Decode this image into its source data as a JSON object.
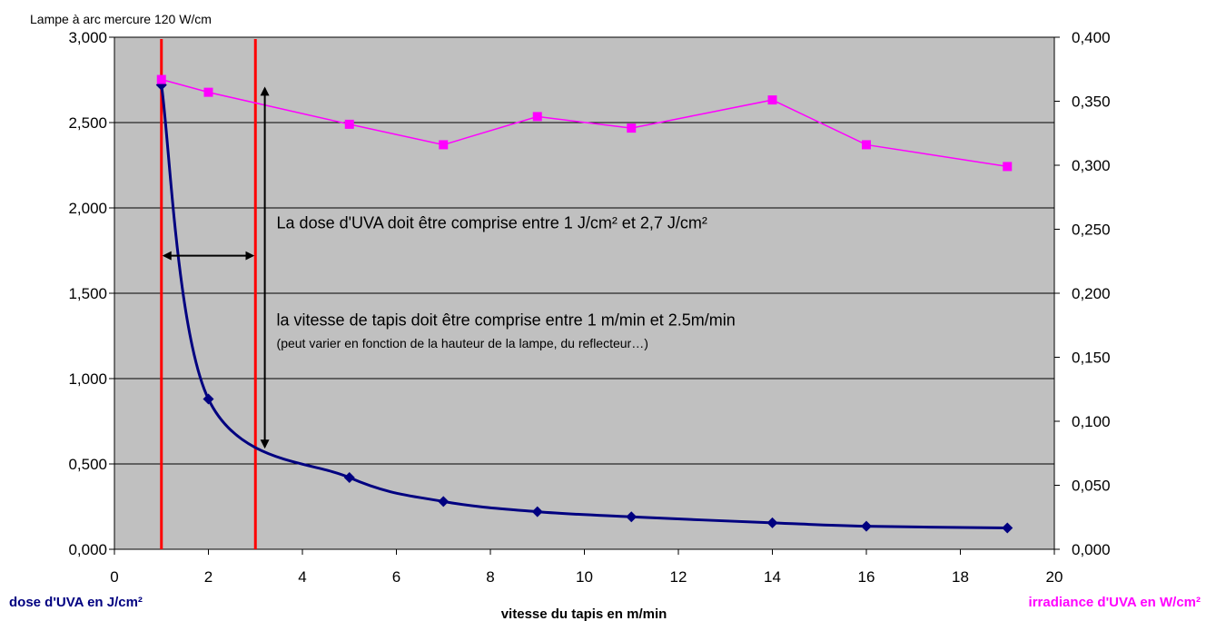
{
  "chart_data": {
    "type": "line",
    "title": "Lampe à arc mercure 120 W/cm",
    "xlabel": "vitesse du tapis en m/min",
    "ylabel_left": "dose d'UVA en J/cm²",
    "ylabel_right": "irradiance d'UVA en W/cm²",
    "xlim": [
      0,
      20
    ],
    "ylim_left": [
      0,
      3
    ],
    "ylim_right": [
      0,
      0.4
    ],
    "x_ticks": [
      "0",
      "2",
      "4",
      "6",
      "8",
      "10",
      "12",
      "14",
      "16",
      "18",
      "20"
    ],
    "y_ticks_left": [
      "0,000",
      "0,500",
      "1,000",
      "1,500",
      "2,000",
      "2,500",
      "3,000"
    ],
    "y_ticks_right": [
      "0,000",
      "0,050",
      "0,100",
      "0,150",
      "0,200",
      "0,250",
      "0,300",
      "0,350",
      "0,400"
    ],
    "grid": "horizontal",
    "plot_background": "#c0c0c0",
    "series": [
      {
        "axis": "left",
        "color": "#000080",
        "marker": "diamond",
        "smooth": true,
        "x": [
          1,
          2,
          5,
          7,
          9,
          11,
          14,
          16,
          19
        ],
        "y": [
          2.72,
          0.88,
          0.42,
          0.28,
          0.22,
          0.19,
          0.155,
          0.135,
          0.125
        ]
      },
      {
        "axis": "right",
        "color": "#ff00ff",
        "marker": "square",
        "smooth": false,
        "x": [
          1,
          2,
          5,
          7,
          9,
          11,
          14,
          16,
          19
        ],
        "y": [
          0.367,
          0.357,
          0.332,
          0.316,
          0.338,
          0.329,
          0.351,
          0.316,
          0.299
        ]
      }
    ],
    "reference_lines": [
      {
        "axis": "x",
        "value": 1,
        "color": "#ff0000"
      },
      {
        "axis": "x",
        "value": 3,
        "color": "#ff0000"
      }
    ],
    "arrows": [
      {
        "orientation": "horizontal",
        "from_x": 1,
        "to_x": 3,
        "y": 1.72
      },
      {
        "orientation": "vertical",
        "x": 3.2,
        "from_y": 2.7,
        "to_y": 0.6
      }
    ],
    "annotations": [
      {
        "text": "La dose d'UVA doit être comprise entre 1 J/cm² et 2,7 J/cm²",
        "x": 3.45,
        "y": 1.88,
        "size": "large"
      },
      {
        "text": "la vitesse de tapis doit être comprise entre 1 m/min et 2.5m/min",
        "x": 3.45,
        "y": 1.31,
        "size": "large"
      },
      {
        "text": "(peut varier en fonction de la hauteur de la lampe, du reflecteur…)",
        "x": 3.45,
        "y": 1.18,
        "size": "small"
      }
    ],
    "colors": {
      "left_label": "#000080",
      "right_label": "#ff00ff"
    }
  }
}
